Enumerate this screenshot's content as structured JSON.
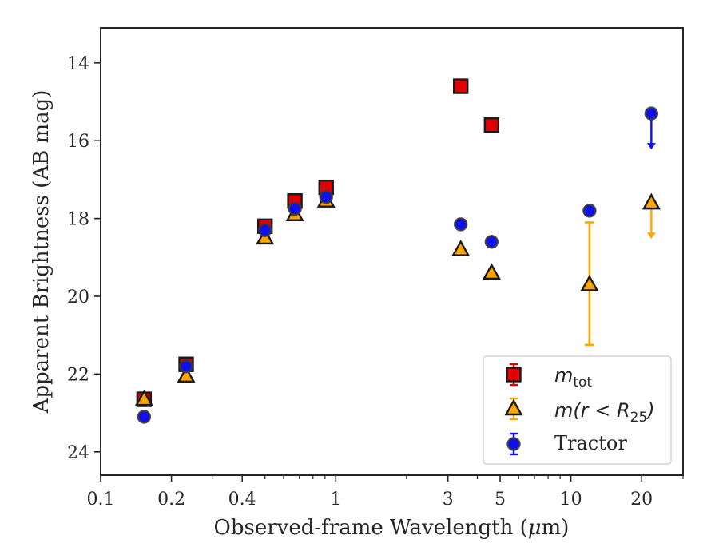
{
  "chart_data": {
    "type": "scatter",
    "xlabel_prefix": "Observed-frame Wavelength (",
    "xlabel_mu": "μ",
    "xlabel_suffix": "m)",
    "ylabel": "Apparent Brightness (AB mag)",
    "xscale": "log",
    "xlim": [
      0.1,
      30
    ],
    "ylim": [
      24.6,
      13.1
    ],
    "y_inverted": true,
    "grid": false,
    "legend_position": "lower-right",
    "x_ticks": [
      {
        "value": 0.1,
        "label": "0.1"
      },
      {
        "value": 0.2,
        "label": "0.2"
      },
      {
        "value": 0.4,
        "label": "0.4"
      },
      {
        "value": 1,
        "label": "1"
      },
      {
        "value": 3,
        "label": "3"
      },
      {
        "value": 5,
        "label": "5"
      },
      {
        "value": 10,
        "label": "10"
      },
      {
        "value": 20,
        "label": "20"
      }
    ],
    "y_ticks": [
      {
        "value": 14,
        "label": "14"
      },
      {
        "value": 16,
        "label": "16"
      },
      {
        "value": 18,
        "label": "18"
      },
      {
        "value": 20,
        "label": "20"
      },
      {
        "value": 22,
        "label": "22"
      },
      {
        "value": 24,
        "label": "24"
      }
    ],
    "series": [
      {
        "name": "m_tot",
        "legend_base": "m",
        "legend_sub": "tot",
        "marker": "square",
        "color": "#e00000",
        "points": [
          {
            "x": 0.153,
            "y": 22.65
          },
          {
            "x": 0.231,
            "y": 21.75
          },
          {
            "x": 0.5,
            "y": 18.2
          },
          {
            "x": 0.67,
            "y": 17.55
          },
          {
            "x": 0.91,
            "y": 17.2
          },
          {
            "x": 3.4,
            "y": 14.6
          },
          {
            "x": 4.6,
            "y": 15.6
          }
        ]
      },
      {
        "name": "m(r < R_25)",
        "legend_base": "m(r < R",
        "legend_sub": "25",
        "legend_tail": ")",
        "marker": "triangle",
        "color": "#ffa500",
        "points": [
          {
            "x": 0.153,
            "y": 22.65
          },
          {
            "x": 0.231,
            "y": 22.05
          },
          {
            "x": 0.5,
            "y": 18.5
          },
          {
            "x": 0.67,
            "y": 17.9
          },
          {
            "x": 0.91,
            "y": 17.55
          },
          {
            "x": 3.4,
            "y": 18.8
          },
          {
            "x": 4.6,
            "y": 19.4
          },
          {
            "x": 12.0,
            "y": 19.7,
            "err_low": 18.1,
            "err_high": 21.25
          },
          {
            "x": 22.0,
            "y": 17.6,
            "upper_limit": true
          }
        ]
      },
      {
        "name": "Tractor",
        "legend_base": "Tractor",
        "marker": "circle",
        "color": "#1010ee",
        "points": [
          {
            "x": 0.153,
            "y": 23.1
          },
          {
            "x": 0.231,
            "y": 21.8
          },
          {
            "x": 0.5,
            "y": 18.3
          },
          {
            "x": 0.67,
            "y": 17.75
          },
          {
            "x": 0.91,
            "y": 17.45
          },
          {
            "x": 3.4,
            "y": 18.15
          },
          {
            "x": 4.6,
            "y": 18.6
          },
          {
            "x": 12.0,
            "y": 17.8
          },
          {
            "x": 22.0,
            "y": 15.3,
            "upper_limit": true
          }
        ]
      }
    ]
  }
}
